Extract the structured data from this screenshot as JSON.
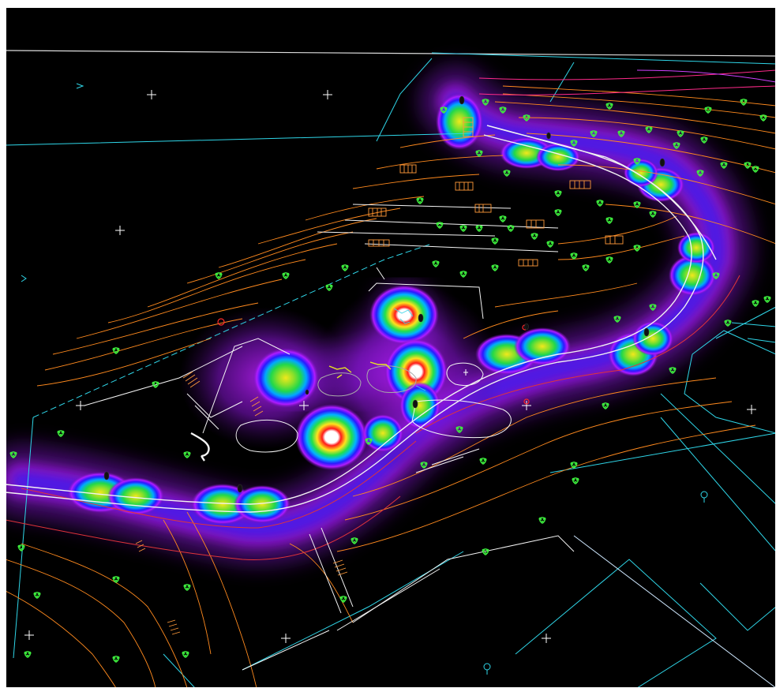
{
  "map": {
    "background": "#000000",
    "frame": "#ffffff",
    "colors": {
      "boundary": "#2fd6e8",
      "road_edge": "#f2f2f2",
      "contour": "#ff8a1e",
      "contour_red": "#e0343a",
      "tree_symbol": "#3ef03e",
      "building": "#f4f4f4",
      "stair": "#ff9a3a"
    },
    "heatmap": {
      "scale": [
        "#1a0030",
        "#7a12c8",
        "#c01cff",
        "#1a1aff",
        "#00c8ff",
        "#22e04a",
        "#f2f21c",
        "#ff7a00",
        "#ff1a1a",
        "#ffffff"
      ],
      "levels": "low-to-high"
    },
    "symbols": [
      "tree-symbol",
      "survey-cross-marker",
      "light-pole-symbol",
      "benchmark-marker"
    ]
  }
}
